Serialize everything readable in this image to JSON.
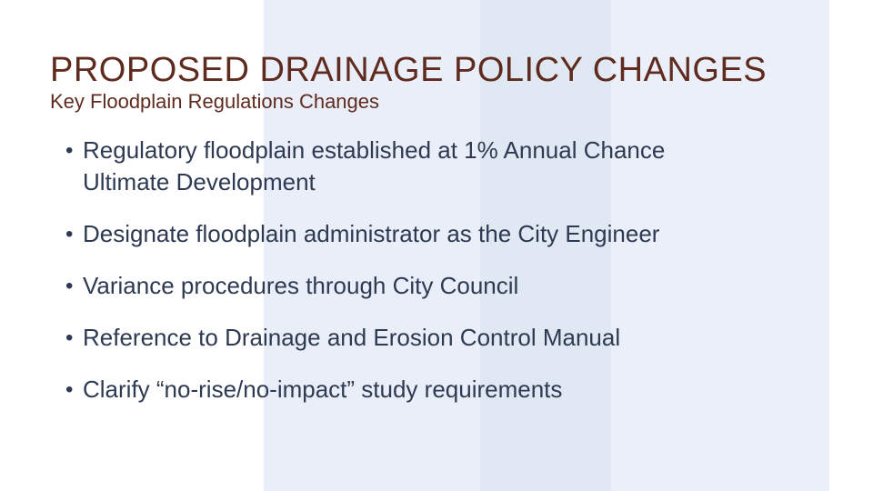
{
  "slide": {
    "title": "PROPOSED DRAINAGE POLICY CHANGES",
    "subtitle": "Key Floodplain Regulations Changes",
    "bullet_glyph": "•",
    "bullets": [
      {
        "text": "Regulatory floodplain established at 1% Annual Chance",
        "text2": "Ultimate Development"
      },
      {
        "text": "Designate floodplain administrator as the City Engineer"
      },
      {
        "text": "Variance procedures through City Council"
      },
      {
        "text": "Reference to Drainage and Erosion Control Manual"
      },
      {
        "text": "Clarify “no-rise/no-impact” study requirements"
      }
    ],
    "colors": {
      "background": "#ffffff",
      "band_left": "#e9eef8",
      "band_mid": "#dfe8f3",
      "band_right": "#eaeff9",
      "title_text": "#5f2b1e",
      "body_text": "#2e3a52"
    }
  }
}
